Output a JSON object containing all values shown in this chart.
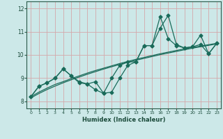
{
  "xlabel": "Humidex (Indice chaleur)",
  "bg_color": "#cce8e8",
  "grid_color": "#d4a8aa",
  "line_color": "#1a6b5a",
  "xlim": [
    -0.5,
    23.5
  ],
  "ylim": [
    7.7,
    12.3
  ],
  "x": [
    0,
    1,
    2,
    3,
    4,
    5,
    6,
    7,
    8,
    9,
    10,
    11,
    12,
    13,
    14,
    15,
    16,
    17,
    18,
    19,
    20,
    21,
    22,
    23
  ],
  "line1": [
    8.2,
    8.65,
    8.8,
    9.0,
    9.4,
    9.1,
    8.8,
    8.75,
    8.85,
    8.35,
    9.0,
    9.55,
    9.7,
    9.7,
    10.4,
    10.4,
    11.65,
    10.7,
    10.4,
    10.3,
    10.35,
    10.85,
    10.05,
    10.5
  ],
  "line2": [
    8.2,
    8.65,
    8.8,
    9.0,
    9.4,
    9.1,
    8.85,
    8.75,
    8.5,
    8.35,
    8.4,
    9.0,
    9.55,
    9.7,
    10.4,
    10.4,
    11.15,
    11.7,
    10.45,
    10.3,
    10.35,
    10.45,
    10.05,
    10.5
  ],
  "trend1": [
    8.2,
    8.4,
    8.57,
    8.73,
    8.85,
    8.98,
    9.1,
    9.22,
    9.33,
    9.43,
    9.53,
    9.63,
    9.72,
    9.81,
    9.89,
    9.97,
    10.05,
    10.12,
    10.19,
    10.26,
    10.32,
    10.38,
    10.44,
    10.5
  ],
  "trend2": [
    8.15,
    8.34,
    8.51,
    8.66,
    8.8,
    8.93,
    9.05,
    9.17,
    9.28,
    9.39,
    9.49,
    9.59,
    9.68,
    9.77,
    9.85,
    9.93,
    10.01,
    10.08,
    10.15,
    10.22,
    10.29,
    10.35,
    10.41,
    10.47
  ],
  "yticks": [
    8,
    9,
    10,
    11,
    12
  ],
  "xtick_labels": [
    "0",
    "1",
    "2",
    "3",
    "4",
    "5",
    "6",
    "7",
    "8",
    "9",
    "10",
    "11",
    "12",
    "13",
    "14",
    "15",
    "16",
    "17",
    "18",
    "19",
    "20",
    "21",
    "22",
    "23"
  ],
  "marker": "D",
  "marker_size": 2.5,
  "linewidth": 0.9
}
